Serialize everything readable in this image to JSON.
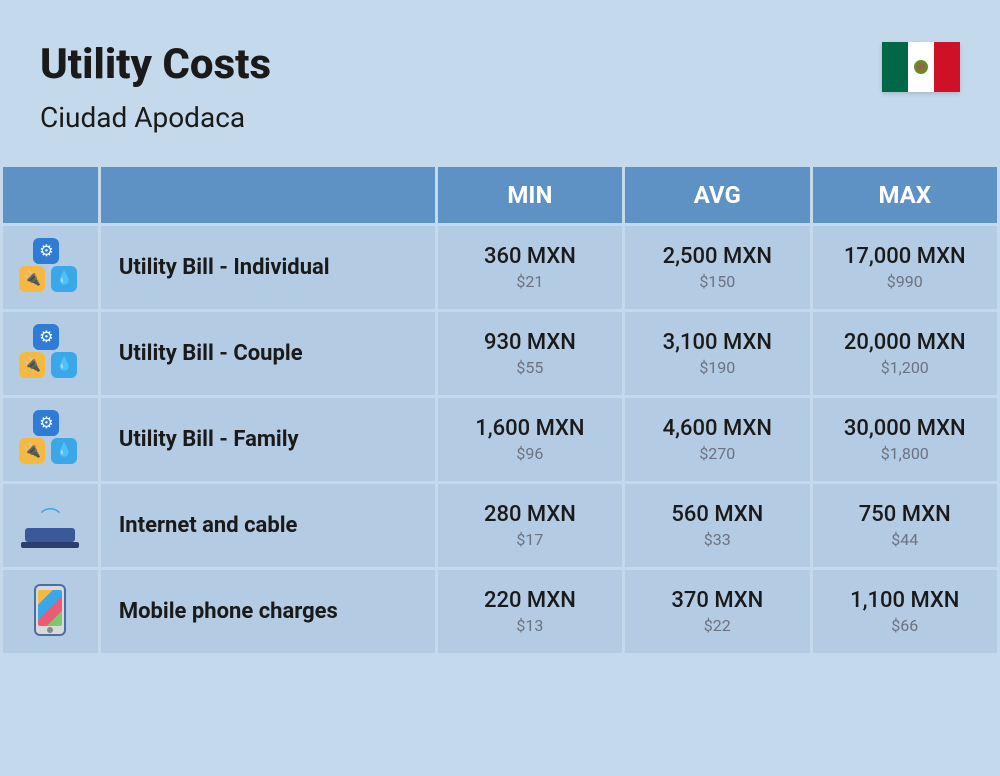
{
  "header": {
    "title": "Utility Costs",
    "subtitle": "Ciudad Apodaca",
    "flag": {
      "country": "Mexico",
      "colors": [
        "#006847",
        "#ffffff",
        "#ce1126"
      ]
    }
  },
  "table": {
    "type": "table",
    "background_color": "#c4daec",
    "header_bg": "#5e92c4",
    "header_text_color": "#ffffff",
    "cell_bg": "#b3cce3",
    "primary_text_color": "#1a1a1a",
    "secondary_text_color": "#6b7280",
    "columns": [
      "",
      "",
      "MIN",
      "AVG",
      "MAX"
    ],
    "rows": [
      {
        "icon": "utility-cluster",
        "label": "Utility Bill - Individual",
        "min": {
          "primary": "360 MXN",
          "secondary": "$21"
        },
        "avg": {
          "primary": "2,500 MXN",
          "secondary": "$150"
        },
        "max": {
          "primary": "17,000 MXN",
          "secondary": "$990"
        }
      },
      {
        "icon": "utility-cluster",
        "label": "Utility Bill - Couple",
        "min": {
          "primary": "930 MXN",
          "secondary": "$55"
        },
        "avg": {
          "primary": "3,100 MXN",
          "secondary": "$190"
        },
        "max": {
          "primary": "20,000 MXN",
          "secondary": "$1,200"
        }
      },
      {
        "icon": "utility-cluster",
        "label": "Utility Bill - Family",
        "min": {
          "primary": "1,600 MXN",
          "secondary": "$96"
        },
        "avg": {
          "primary": "4,600 MXN",
          "secondary": "$270"
        },
        "max": {
          "primary": "30,000 MXN",
          "secondary": "$1,800"
        }
      },
      {
        "icon": "router",
        "label": "Internet and cable",
        "min": {
          "primary": "280 MXN",
          "secondary": "$17"
        },
        "avg": {
          "primary": "560 MXN",
          "secondary": "$33"
        },
        "max": {
          "primary": "750 MXN",
          "secondary": "$44"
        }
      },
      {
        "icon": "phone",
        "label": "Mobile phone charges",
        "min": {
          "primary": "220 MXN",
          "secondary": "$13"
        },
        "avg": {
          "primary": "370 MXN",
          "secondary": "$22"
        },
        "max": {
          "primary": "1,100 MXN",
          "secondary": "$66"
        }
      }
    ],
    "label_fontsize": 22,
    "value_primary_fontsize": 22,
    "value_secondary_fontsize": 16,
    "header_fontsize": 24
  }
}
